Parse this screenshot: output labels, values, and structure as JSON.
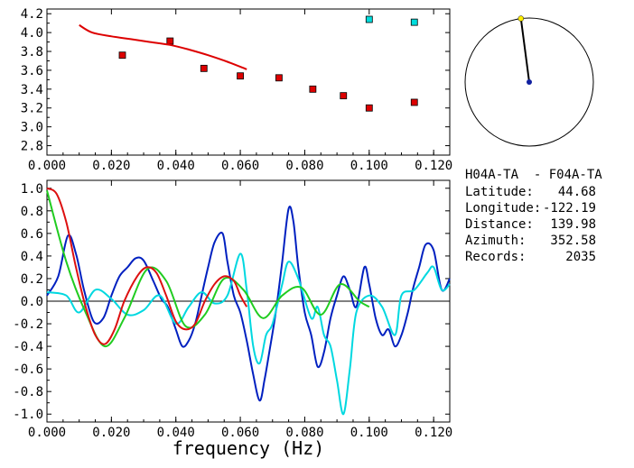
{
  "chart_data": [
    {
      "type": "scatter",
      "title": "",
      "xlabel": "",
      "ylabel": "",
      "xlim": [
        0.0,
        0.125
      ],
      "ylim": [
        2.7,
        4.25
      ],
      "grid": false,
      "x_ticks": [
        "0.000",
        "0.020",
        "0.040",
        "0.060",
        "0.080",
        "0.100",
        "0.120"
      ],
      "x_tick_values": [
        0.0,
        0.02,
        0.04,
        0.06,
        0.08,
        0.1,
        0.12
      ],
      "y_ticks": [
        "2.8",
        "3.0",
        "3.2",
        "3.4",
        "3.6",
        "3.8",
        "4.0",
        "4.2"
      ],
      "y_tick_values": [
        2.8,
        3.0,
        3.2,
        3.4,
        3.6,
        3.8,
        4.0,
        4.2
      ],
      "series": [
        {
          "kind": "markers",
          "color": "#dd0000",
          "x": [
            0.0234,
            0.0382,
            0.0487,
            0.06,
            0.072,
            0.0825,
            0.092,
            0.1,
            0.114
          ],
          "y": [
            3.76,
            3.91,
            3.62,
            3.54,
            3.52,
            3.4,
            3.33,
            3.2,
            3.26
          ]
        },
        {
          "kind": "markers",
          "color": "#00dddd",
          "x": [
            0.1,
            0.114
          ],
          "y": [
            4.14,
            4.11
          ]
        },
        {
          "kind": "line",
          "color": "#dd0000",
          "x": [
            0.01,
            0.014,
            0.02,
            0.026,
            0.032,
            0.038,
            0.044,
            0.05,
            0.056,
            0.062
          ],
          "y": [
            4.08,
            4.0,
            3.96,
            3.93,
            3.9,
            3.87,
            3.82,
            3.76,
            3.69,
            3.61
          ]
        }
      ]
    },
    {
      "type": "line",
      "title": "",
      "xlabel": "frequency (Hz)",
      "ylabel": "",
      "xlim": [
        0.0,
        0.125
      ],
      "ylim": [
        -1.07,
        1.07
      ],
      "grid": false,
      "zero_line": true,
      "x_ticks": [
        "0.000",
        "0.020",
        "0.040",
        "0.060",
        "0.080",
        "0.100",
        "0.120"
      ],
      "x_tick_values": [
        0.0,
        0.02,
        0.04,
        0.06,
        0.08,
        0.1,
        0.12
      ],
      "y_ticks": [
        "-1.0",
        "-0.8",
        "-0.6",
        "-0.4",
        "-0.2",
        "0.0",
        "0.2",
        "0.4",
        "0.6",
        "0.8",
        "1.0"
      ],
      "y_tick_values": [
        -1.0,
        -0.8,
        -0.6,
        -0.4,
        -0.2,
        0.0,
        0.2,
        0.4,
        0.6,
        0.8,
        1.0
      ],
      "series": [
        {
          "color": "#0020c0",
          "x": [
            0.0,
            0.0035,
            0.0065,
            0.009,
            0.0115,
            0.0145,
            0.0175,
            0.02,
            0.0225,
            0.025,
            0.0275,
            0.03,
            0.033,
            0.0355,
            0.0375,
            0.04,
            0.042,
            0.044,
            0.046,
            0.048,
            0.05,
            0.052,
            0.0545,
            0.056,
            0.058,
            0.06,
            0.062,
            0.064,
            0.066,
            0.0675,
            0.069,
            0.071,
            0.073,
            0.075,
            0.0765,
            0.078,
            0.08,
            0.082,
            0.084,
            0.086,
            0.088,
            0.09,
            0.092,
            0.094,
            0.096,
            0.0985,
            0.1,
            0.102,
            0.104,
            0.106,
            0.108,
            0.11,
            0.112,
            0.1135,
            0.1155,
            0.1175,
            0.12,
            0.1225,
            0.125
          ],
          "y": [
            0.05,
            0.22,
            0.58,
            0.42,
            0.1,
            -0.18,
            -0.15,
            0.05,
            0.22,
            0.3,
            0.38,
            0.36,
            0.18,
            0.02,
            -0.05,
            -0.25,
            -0.4,
            -0.35,
            -0.2,
            0.05,
            0.3,
            0.52,
            0.6,
            0.35,
            0.05,
            -0.1,
            -0.35,
            -0.65,
            -0.88,
            -0.7,
            -0.45,
            -0.1,
            0.35,
            0.82,
            0.7,
            0.3,
            -0.1,
            -0.3,
            -0.58,
            -0.45,
            -0.15,
            0.05,
            0.22,
            0.1,
            -0.05,
            0.3,
            0.15,
            -0.15,
            -0.3,
            -0.25,
            -0.4,
            -0.3,
            -0.1,
            0.1,
            0.3,
            0.5,
            0.45,
            0.1,
            0.2
          ]
        },
        {
          "color": "#00d8e0",
          "x": [
            0.0,
            0.006,
            0.01,
            0.015,
            0.02,
            0.025,
            0.03,
            0.035,
            0.04,
            0.044,
            0.048,
            0.052,
            0.056,
            0.06,
            0.062,
            0.064,
            0.066,
            0.068,
            0.07,
            0.073,
            0.075,
            0.078,
            0.082,
            0.084,
            0.086,
            0.088,
            0.09,
            0.092,
            0.094,
            0.096,
            0.1,
            0.104,
            0.108,
            0.11,
            0.114,
            0.118,
            0.12,
            0.1225,
            0.125
          ],
          "y": [
            0.08,
            0.05,
            -0.1,
            0.1,
            0.02,
            -0.12,
            -0.08,
            0.05,
            -0.2,
            -0.05,
            0.08,
            -0.02,
            0.05,
            0.42,
            0.1,
            -0.4,
            -0.55,
            -0.3,
            -0.2,
            0.15,
            0.35,
            0.2,
            -0.15,
            -0.05,
            -0.3,
            -0.4,
            -0.7,
            -1.0,
            -0.6,
            -0.1,
            0.05,
            -0.05,
            -0.3,
            0.05,
            0.1,
            0.25,
            0.3,
            0.1,
            0.15
          ]
        },
        {
          "color": "#20cc20",
          "x": [
            0.0,
            0.006,
            0.012,
            0.018,
            0.024,
            0.031,
            0.037,
            0.043,
            0.049,
            0.055,
            0.061,
            0.067,
            0.073,
            0.079,
            0.085,
            0.091,
            0.097,
            0.1
          ],
          "y": [
            0.98,
            0.35,
            -0.1,
            -0.4,
            -0.15,
            0.28,
            0.18,
            -0.22,
            -0.12,
            0.2,
            0.1,
            -0.15,
            0.05,
            0.12,
            -0.12,
            0.15,
            0.0,
            -0.05
          ]
        },
        {
          "color": "#dd1010",
          "x": [
            0.0,
            0.003,
            0.006,
            0.009,
            0.012,
            0.015,
            0.018,
            0.021,
            0.024,
            0.028,
            0.031,
            0.034,
            0.037,
            0.04,
            0.043,
            0.046,
            0.049,
            0.052,
            0.055,
            0.058,
            0.06,
            0.062
          ],
          "y": [
            1.0,
            0.95,
            0.7,
            0.3,
            -0.05,
            -0.3,
            -0.38,
            -0.25,
            0.0,
            0.22,
            0.3,
            0.25,
            0.05,
            -0.18,
            -0.25,
            -0.2,
            0.0,
            0.15,
            0.22,
            0.18,
            0.05,
            -0.05
          ]
        }
      ]
    }
  ],
  "polar": {
    "azimuth_deg": 352.58,
    "circle_color": "#000000",
    "needle_color": "#000000",
    "tip_color": "#ffee00",
    "center_color": "#1020a0"
  },
  "info": {
    "station_pair": "H04A-TA  - F04A-TA",
    "lines": [
      {
        "label": "Latitude:",
        "value": "44.68"
      },
      {
        "label": "Longitude:",
        "value": "-122.19"
      },
      {
        "label": "Distance:",
        "value": "139.98"
      },
      {
        "label": "Azimuth:",
        "value": "352.58"
      },
      {
        "label": "Records:",
        "value": "2035"
      }
    ]
  }
}
